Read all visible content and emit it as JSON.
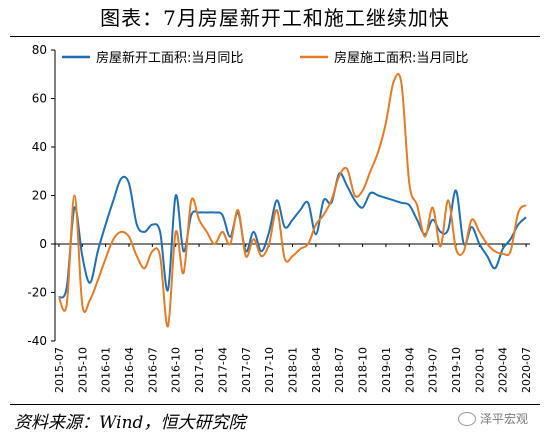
{
  "header": {
    "title": "图表：7月房屋新开工和施工继续加快"
  },
  "footer": {
    "source": "资料来源：Wind，恒大研究院",
    "watermark": "泽平宏观",
    "watermark_icon": "wechat-logo-icon"
  },
  "colors": {
    "new_starts": "#1f6fb4",
    "under_construction": "#e57b25"
  },
  "chart_data": {
    "type": "line",
    "title": "",
    "xlabel": "",
    "ylabel": "",
    "ylim": [
      -40,
      80
    ],
    "yticks": [
      -40,
      -20,
      0,
      20,
      40,
      60,
      80
    ],
    "grid": false,
    "legend_position": "top",
    "xtick_labels": [
      "2015-07",
      "2015-10",
      "2016-01",
      "2016-04",
      "2016-07",
      "2016-10",
      "2017-01",
      "2017-04",
      "2017-07",
      "2017-10",
      "2018-01",
      "2018-04",
      "2018-07",
      "2018-10",
      "2019-01",
      "2019-04",
      "2019-07",
      "2019-10",
      "2020-01",
      "2020-04",
      "2020-07"
    ],
    "x": [
      "2015-07",
      "2015-08",
      "2015-09",
      "2015-10",
      "2015-11",
      "2015-12",
      "2016-01",
      "2016-02",
      "2016-03",
      "2016-04",
      "2016-05",
      "2016-06",
      "2016-07",
      "2016-08",
      "2016-09",
      "2016-10",
      "2016-11",
      "2016-12",
      "2017-01",
      "2017-02",
      "2017-03",
      "2017-04",
      "2017-05",
      "2017-06",
      "2017-07",
      "2017-08",
      "2017-09",
      "2017-10",
      "2017-11",
      "2017-12",
      "2018-01",
      "2018-02",
      "2018-03",
      "2018-04",
      "2018-05",
      "2018-06",
      "2018-07",
      "2018-08",
      "2018-09",
      "2018-10",
      "2018-11",
      "2018-12",
      "2019-01",
      "2019-02",
      "2019-03",
      "2019-04",
      "2019-05",
      "2019-06",
      "2019-07",
      "2019-08",
      "2019-09",
      "2019-10",
      "2019-11",
      "2019-12",
      "2020-01",
      "2020-02",
      "2020-03",
      "2020-04",
      "2020-05",
      "2020-06",
      "2020-07"
    ],
    "series": [
      {
        "name": "房屋新开工面积:当月同比",
        "values": [
          -22,
          -18,
          15,
          -5,
          -16,
          -3,
          8,
          18,
          27,
          25,
          8,
          5,
          8,
          5,
          -19,
          20,
          -3,
          12,
          13,
          13,
          13,
          12,
          3,
          13,
          -3,
          5,
          -3,
          5,
          18,
          7,
          10,
          14,
          17,
          4,
          18,
          17,
          29,
          24,
          18,
          15,
          21,
          20,
          19,
          18,
          17,
          16,
          10,
          4,
          10,
          5,
          6,
          22,
          0,
          7,
          0,
          -5,
          -10,
          -2,
          2,
          8,
          11
        ]
      },
      {
        "name": "房屋施工面积:当月同比",
        "values": [
          -22,
          -25,
          20,
          -25,
          -23,
          -15,
          -6,
          2,
          5,
          3,
          -5,
          -10,
          -3,
          -5,
          -34,
          5,
          -12,
          18,
          10,
          5,
          0,
          5,
          0,
          14,
          -5,
          2,
          -5,
          0,
          14,
          -6,
          -5,
          -2,
          0,
          8,
          12,
          18,
          28,
          31,
          20,
          22,
          30,
          38,
          50,
          67,
          66,
          25,
          16,
          3,
          15,
          -1,
          18,
          -2,
          -3,
          10,
          5,
          0,
          -3,
          -4,
          -3,
          13,
          16
        ]
      }
    ]
  }
}
